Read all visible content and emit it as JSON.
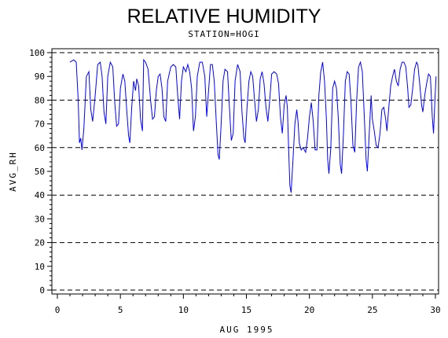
{
  "chart_data": {
    "type": "line",
    "title": "RELATIVE HUMIDITY",
    "subtitle": "STATION=HOGI",
    "xlabel": "AUG 1995",
    "ylabel": "AVG_RH",
    "xlim": [
      0,
      30.2
    ],
    "ylim": [
      0,
      101
    ],
    "x_ticks": [
      0,
      5,
      10,
      15,
      20,
      25,
      30
    ],
    "y_ticks": [
      0,
      10,
      20,
      30,
      40,
      50,
      60,
      70,
      80,
      90,
      100
    ],
    "reference_lines": [
      0,
      20,
      40,
      60,
      80,
      100
    ],
    "series_color": "#0000ff",
    "series": [
      {
        "values": [
          [
            1.0,
            96
          ],
          [
            1.3,
            97
          ],
          [
            1.5,
            96
          ],
          [
            1.65,
            80
          ],
          [
            1.75,
            62
          ],
          [
            1.85,
            64
          ],
          [
            1.95,
            59
          ],
          [
            2.1,
            68
          ],
          [
            2.3,
            90
          ],
          [
            2.5,
            92
          ],
          [
            2.65,
            76
          ],
          [
            2.8,
            71
          ],
          [
            3.0,
            82
          ],
          [
            3.2,
            95
          ],
          [
            3.4,
            96
          ],
          [
            3.55,
            90
          ],
          [
            3.7,
            75
          ],
          [
            3.85,
            70
          ],
          [
            4.0,
            90
          ],
          [
            4.2,
            96
          ],
          [
            4.4,
            94
          ],
          [
            4.55,
            79
          ],
          [
            4.7,
            69
          ],
          [
            4.85,
            70
          ],
          [
            5.0,
            85
          ],
          [
            5.2,
            91
          ],
          [
            5.35,
            88
          ],
          [
            5.5,
            76
          ],
          [
            5.65,
            65
          ],
          [
            5.75,
            62
          ],
          [
            5.9,
            77
          ],
          [
            6.05,
            88
          ],
          [
            6.2,
            84
          ],
          [
            6.3,
            89
          ],
          [
            6.45,
            86
          ],
          [
            6.6,
            72
          ],
          [
            6.75,
            67
          ],
          [
            6.85,
            97
          ],
          [
            7.0,
            96
          ],
          [
            7.2,
            93
          ],
          [
            7.4,
            80
          ],
          [
            7.55,
            72
          ],
          [
            7.7,
            73
          ],
          [
            7.85,
            84
          ],
          [
            8.0,
            90
          ],
          [
            8.15,
            91
          ],
          [
            8.3,
            85
          ],
          [
            8.45,
            73
          ],
          [
            8.6,
            71
          ],
          [
            8.75,
            88
          ],
          [
            9.0,
            94
          ],
          [
            9.2,
            95
          ],
          [
            9.4,
            94
          ],
          [
            9.55,
            82
          ],
          [
            9.7,
            72
          ],
          [
            9.85,
            88
          ],
          [
            10.0,
            94
          ],
          [
            10.2,
            92
          ],
          [
            10.35,
            95
          ],
          [
            10.5,
            92
          ],
          [
            10.65,
            85
          ],
          [
            10.8,
            67
          ],
          [
            10.95,
            73
          ],
          [
            11.1,
            90
          ],
          [
            11.3,
            96
          ],
          [
            11.5,
            96
          ],
          [
            11.7,
            90
          ],
          [
            11.85,
            73
          ],
          [
            12.0,
            84
          ],
          [
            12.15,
            95
          ],
          [
            12.3,
            95
          ],
          [
            12.45,
            88
          ],
          [
            12.6,
            72
          ],
          [
            12.75,
            57
          ],
          [
            12.85,
            55
          ],
          [
            13.0,
            70
          ],
          [
            13.15,
            88
          ],
          [
            13.3,
            93
          ],
          [
            13.5,
            92
          ],
          [
            13.65,
            77
          ],
          [
            13.8,
            63
          ],
          [
            13.95,
            66
          ],
          [
            14.1,
            88
          ],
          [
            14.3,
            95
          ],
          [
            14.5,
            92
          ],
          [
            14.65,
            75
          ],
          [
            14.8,
            64
          ],
          [
            14.9,
            62
          ],
          [
            15.05,
            77
          ],
          [
            15.2,
            88
          ],
          [
            15.35,
            92
          ],
          [
            15.5,
            90
          ],
          [
            15.65,
            80
          ],
          [
            15.8,
            71
          ],
          [
            15.95,
            76
          ],
          [
            16.1,
            89
          ],
          [
            16.25,
            92
          ],
          [
            16.4,
            87
          ],
          [
            16.55,
            77
          ],
          [
            16.7,
            71
          ],
          [
            16.85,
            80
          ],
          [
            17.0,
            91
          ],
          [
            17.2,
            92
          ],
          [
            17.4,
            91
          ],
          [
            17.55,
            87
          ],
          [
            17.7,
            73
          ],
          [
            17.85,
            66
          ],
          [
            18.0,
            78
          ],
          [
            18.15,
            82
          ],
          [
            18.25,
            77
          ],
          [
            18.35,
            60
          ],
          [
            18.45,
            44
          ],
          [
            18.55,
            41
          ],
          [
            18.7,
            55
          ],
          [
            18.85,
            70
          ],
          [
            19.0,
            76
          ],
          [
            19.1,
            71
          ],
          [
            19.2,
            62
          ],
          [
            19.35,
            59
          ],
          [
            19.5,
            60
          ],
          [
            19.7,
            58
          ],
          [
            19.85,
            64
          ],
          [
            20.0,
            73
          ],
          [
            20.15,
            79
          ],
          [
            20.3,
            71
          ],
          [
            20.45,
            59
          ],
          [
            20.6,
            59
          ],
          [
            20.75,
            82
          ],
          [
            20.9,
            92
          ],
          [
            21.05,
            96
          ],
          [
            21.2,
            88
          ],
          [
            21.35,
            72
          ],
          [
            21.45,
            55
          ],
          [
            21.55,
            49
          ],
          [
            21.7,
            60
          ],
          [
            21.85,
            85
          ],
          [
            22.0,
            88
          ],
          [
            22.15,
            85
          ],
          [
            22.3,
            72
          ],
          [
            22.45,
            53
          ],
          [
            22.55,
            49
          ],
          [
            22.7,
            66
          ],
          [
            22.85,
            88
          ],
          [
            23.0,
            92
          ],
          [
            23.15,
            91
          ],
          [
            23.3,
            79
          ],
          [
            23.45,
            61
          ],
          [
            23.6,
            58
          ],
          [
            23.75,
            80
          ],
          [
            23.9,
            94
          ],
          [
            24.05,
            96
          ],
          [
            24.2,
            92
          ],
          [
            24.35,
            74
          ],
          [
            24.5,
            55
          ],
          [
            24.6,
            50
          ],
          [
            24.75,
            66
          ],
          [
            24.9,
            82
          ],
          [
            25.0,
            72
          ],
          [
            25.15,
            67
          ],
          [
            25.3,
            61
          ],
          [
            25.45,
            60
          ],
          [
            25.6,
            66
          ],
          [
            25.75,
            76
          ],
          [
            25.9,
            77
          ],
          [
            26.05,
            72
          ],
          [
            26.15,
            67
          ],
          [
            26.3,
            77
          ],
          [
            26.45,
            86
          ],
          [
            26.6,
            90
          ],
          [
            26.75,
            93
          ],
          [
            26.9,
            88
          ],
          [
            27.05,
            86
          ],
          [
            27.2,
            93
          ],
          [
            27.35,
            96
          ],
          [
            27.5,
            96
          ],
          [
            27.65,
            94
          ],
          [
            27.8,
            85
          ],
          [
            27.9,
            77
          ],
          [
            28.05,
            78
          ],
          [
            28.2,
            85
          ],
          [
            28.35,
            93
          ],
          [
            28.5,
            96
          ],
          [
            28.6,
            95
          ],
          [
            28.75,
            87
          ],
          [
            28.9,
            78
          ],
          [
            29.0,
            75
          ],
          [
            29.15,
            82
          ],
          [
            29.3,
            87
          ],
          [
            29.45,
            91
          ],
          [
            29.6,
            90
          ],
          [
            29.75,
            73
          ],
          [
            29.85,
            66
          ],
          [
            29.95,
            79
          ],
          [
            30.05,
            90
          ]
        ]
      }
    ]
  }
}
